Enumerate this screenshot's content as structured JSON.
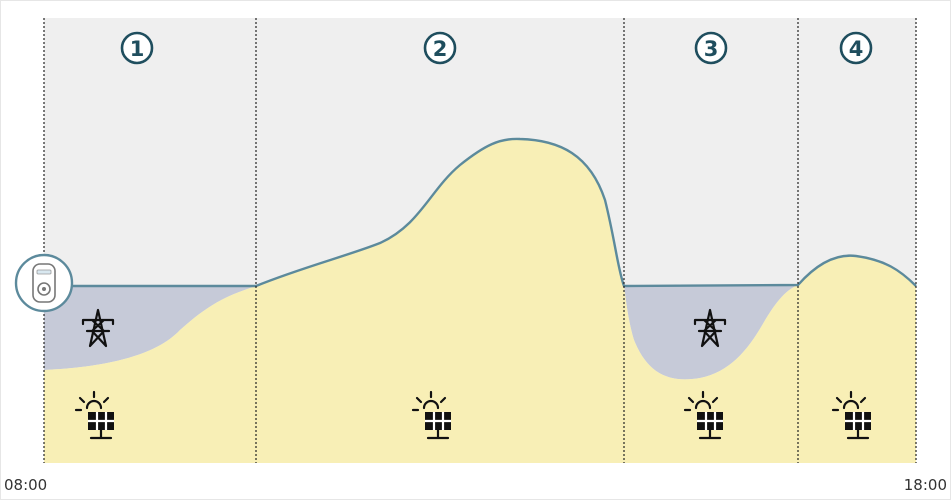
{
  "time_axis": {
    "start_label": "08:00",
    "end_label": "18:00"
  },
  "phases": [
    {
      "number": "1",
      "sources": [
        "grid-icon",
        "solar-panel-icon"
      ]
    },
    {
      "number": "2",
      "sources": [
        "solar-panel-icon"
      ]
    },
    {
      "number": "3",
      "sources": [
        "grid-icon",
        "solar-panel-icon"
      ]
    },
    {
      "number": "4",
      "sources": [
        "solar-panel-icon"
      ]
    }
  ],
  "colors": {
    "sky_background": "#efefef",
    "solar_fill": "#f8efb6",
    "grid_fill": "#c6cad8",
    "curve_stroke": "#5c8a9c",
    "phase_circle": "#1f4e5e",
    "divider": "#222222"
  }
}
